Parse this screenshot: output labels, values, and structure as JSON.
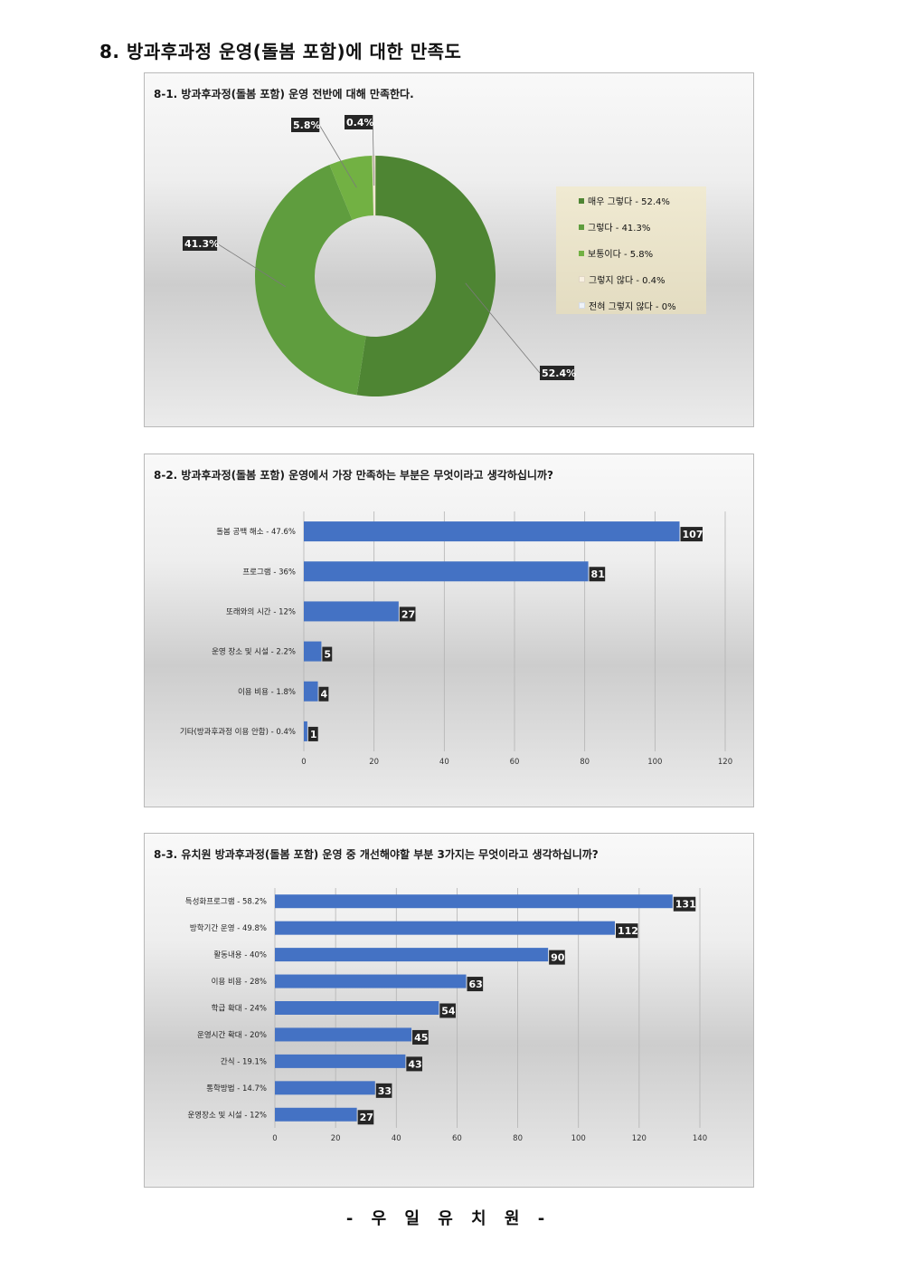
{
  "page": {
    "title": "8. 방과후과정 운영(돌봄 포함)에 대한 만족도",
    "footer": "- 우 일 유 치 원 -"
  },
  "chart_data": [
    {
      "type": "pie",
      "title": "8-1. 방과후과정(돌봄 포함) 운영 전반에 대해 만족한다.",
      "categories": [
        "매우 그렇다",
        "그렇다",
        "보통이다",
        "그렇지 않다",
        "전혀 그렇지 않다"
      ],
      "values": [
        52.4,
        41.3,
        5.8,
        0.4,
        0
      ],
      "data_labels": [
        "52.4%",
        "41.3%",
        "5.8%",
        "0.4%",
        ""
      ],
      "legend_labels": [
        "매우 그렇다 - 52.4%",
        "그렇다 - 41.3%",
        "보통이다 - 5.8%",
        "그렇지 않다 - 0.4%",
        "전혀 그렇지 않다 - 0%"
      ],
      "colors": [
        "#4e8533",
        "#5f9d3e",
        "#72b143",
        "#f5e9d6",
        "#e8eef6"
      ],
      "donut": true,
      "legend_position": "right"
    },
    {
      "type": "bar",
      "orientation": "horizontal",
      "title": "8-2. 방과후과정(돌봄 포함) 운영에서 가장 만족하는 부분은 무엇이라고 생각하십니까?",
      "categories": [
        "돌봄 공백 해소 - 47.6%",
        "프로그램 - 36%",
        "또래와의 시간 - 12%",
        "운영 장소 및 시설 - 2.2%",
        "이용 비용 - 1.8%",
        "기타(방과후과정 이용 안함) - 0.4%"
      ],
      "values": [
        107,
        81,
        27,
        5,
        4,
        1
      ],
      "xlim": [
        0,
        120
      ],
      "xticks": [
        0,
        20,
        40,
        60,
        80,
        100,
        120
      ],
      "bar_color": "#4472c4",
      "grid": true
    },
    {
      "type": "bar",
      "orientation": "horizontal",
      "title": "8-3. 유치원 방과후과정(돌봄 포함) 운영 중 개선해야할 부분 3가지는 무엇이라고 생각하십니까?",
      "categories": [
        "특성화프로그램 - 58.2%",
        "방학기간 운영 - 49.8%",
        "활동내용 - 40%",
        "이용 비용 - 28%",
        "학급 확대 - 24%",
        "운영시간 확대 - 20%",
        "간식 - 19.1%",
        "통학방법 - 14.7%",
        "운영장소 및 시설 - 12%"
      ],
      "values": [
        131,
        112,
        90,
        63,
        54,
        45,
        43,
        33,
        27
      ],
      "xlim": [
        0,
        140
      ],
      "xticks": [
        0,
        20,
        40,
        60,
        80,
        100,
        120,
        140
      ],
      "bar_color": "#4472c4",
      "grid": true
    }
  ]
}
